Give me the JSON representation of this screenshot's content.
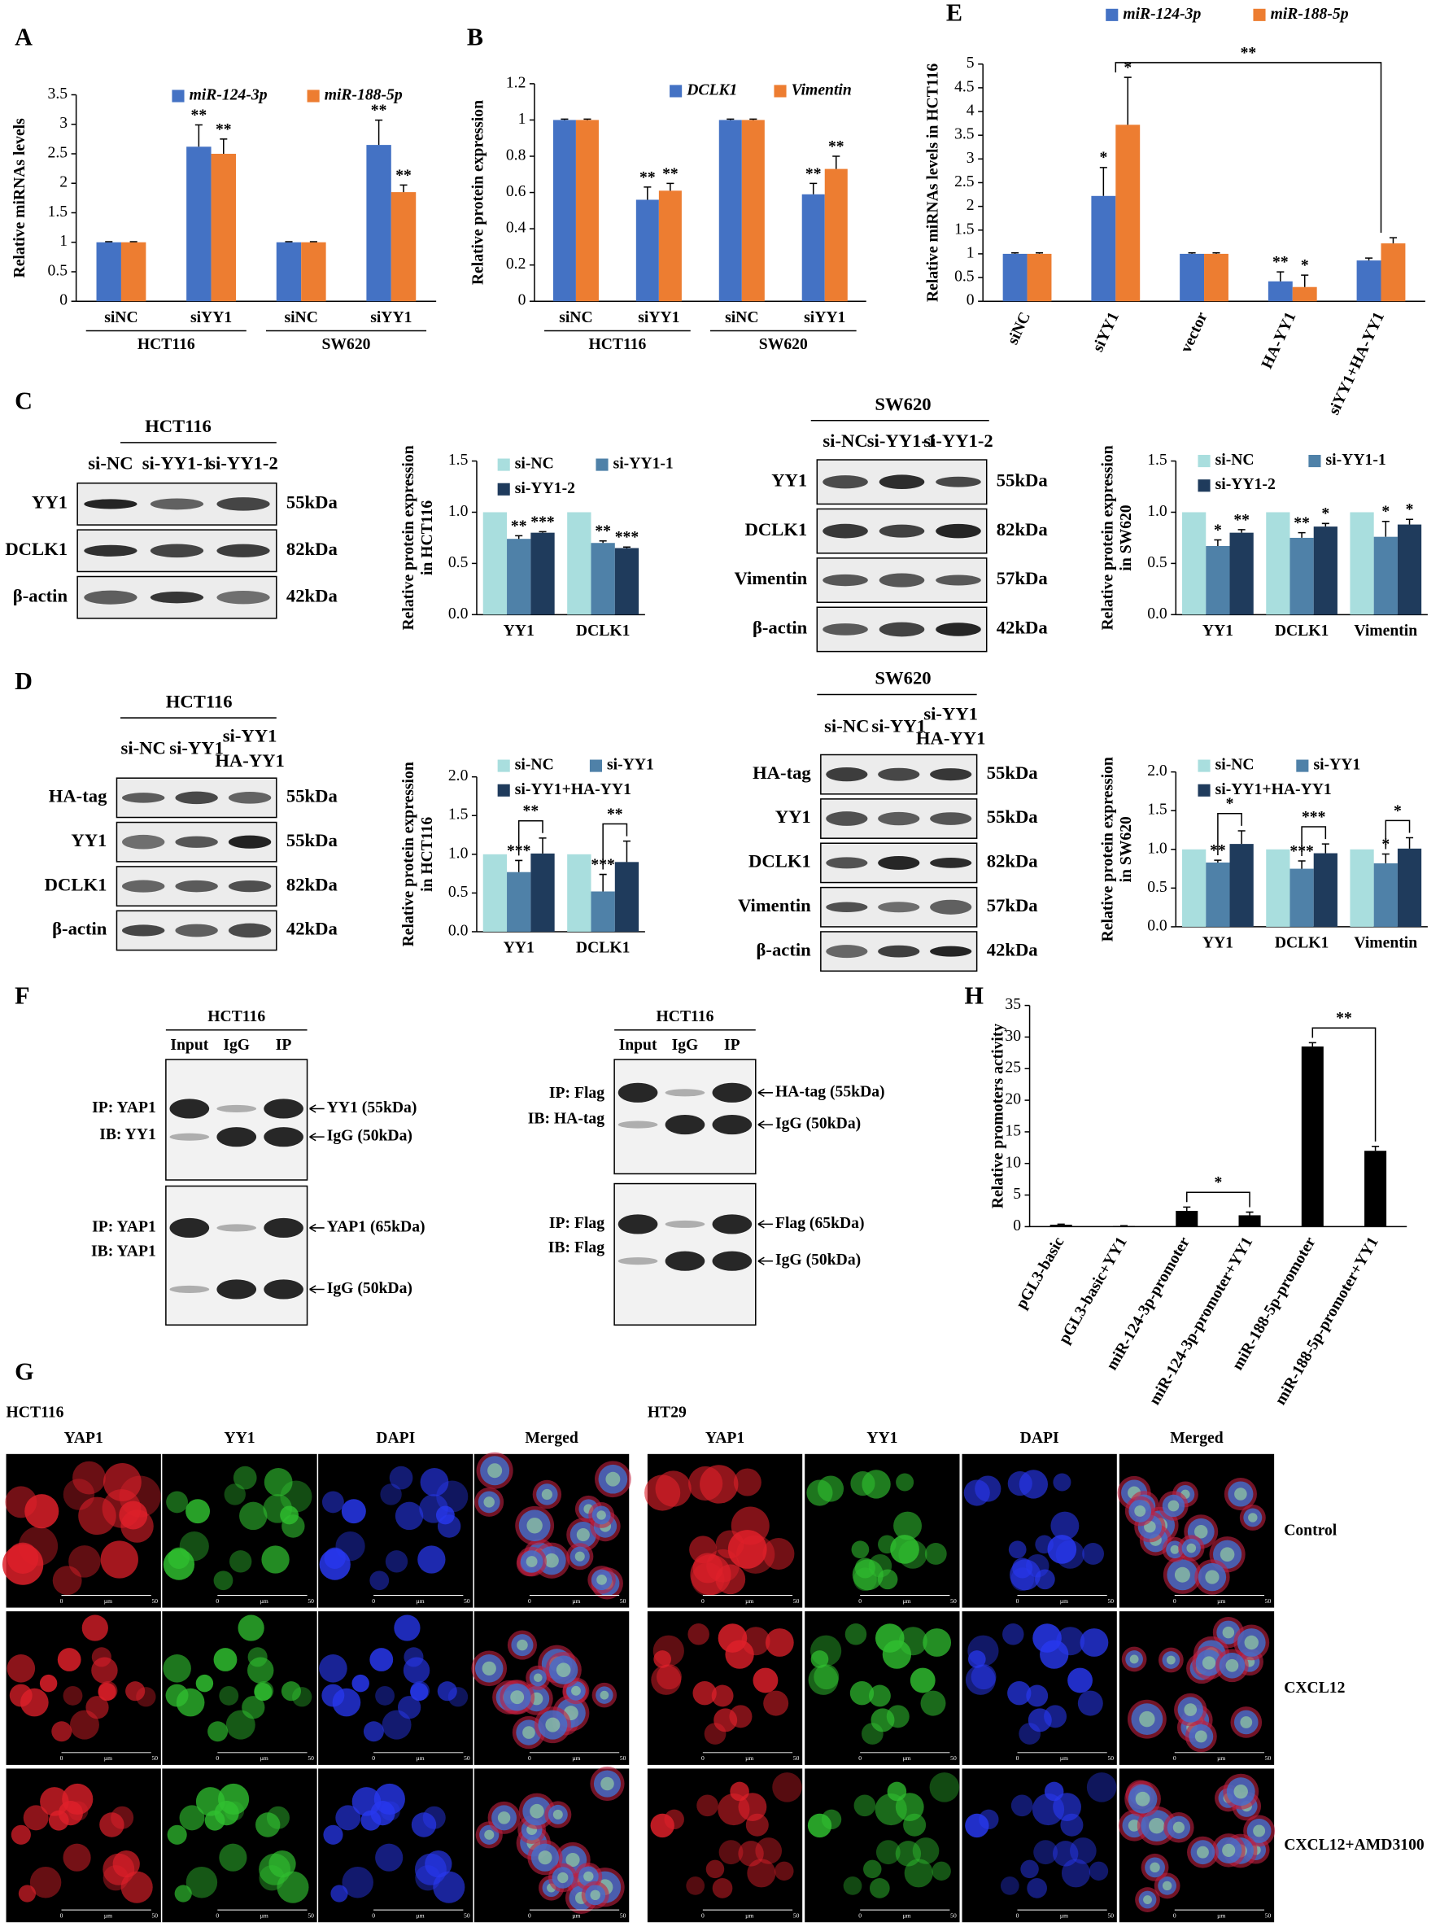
{
  "panel_labels": [
    "A",
    "B",
    "C",
    "D",
    "E",
    "F",
    "G",
    "H"
  ],
  "chart_data": [
    {
      "type": "bar",
      "ylabel": "Relative miRNAs levels",
      "categories": [
        "siNC",
        "siYY1",
        "siNC",
        "siYY1"
      ],
      "groups": [
        "HCT116",
        "SW620"
      ],
      "ylim": [
        0,
        3.5
      ],
      "yticks": [
        0,
        0.5,
        1,
        1.5,
        2,
        2.5,
        3,
        3.5
      ],
      "legend": "top",
      "legend_italic": true,
      "series": [
        {
          "name": "miR-124-3p",
          "color": "#4472c4",
          "values": [
            1,
            2.62,
            1,
            2.65
          ],
          "errors": [
            0.01,
            0.37,
            0.01,
            0.42
          ],
          "significance": [
            null,
            "**",
            null,
            "**"
          ]
        },
        {
          "name": "miR-188-5p",
          "color": "#ed7d31",
          "values": [
            1,
            2.5,
            1,
            1.85
          ],
          "errors": [
            0.01,
            0.25,
            0.01,
            0.12
          ],
          "significance": [
            null,
            "**",
            null,
            "**"
          ]
        }
      ]
    },
    {
      "type": "bar",
      "ylabel": "Relative protein expression",
      "categories": [
        "siNC",
        "siYY1",
        "siNC",
        "siYY1"
      ],
      "groups": [
        "HCT116",
        "SW620"
      ],
      "ylim": [
        0,
        1.2
      ],
      "yticks": [
        0,
        0.2,
        0.4,
        0.6,
        0.8,
        1,
        1.2
      ],
      "legend": "top",
      "legend_italic": true,
      "series": [
        {
          "name": "DCLK1",
          "color": "#4472c4",
          "values": [
            1,
            0.56,
            1,
            0.59
          ],
          "errors": [
            0.005,
            0.07,
            0.005,
            0.06
          ],
          "significance": [
            null,
            "**",
            null,
            "**"
          ]
        },
        {
          "name": "Vimentin",
          "color": "#ed7d31",
          "values": [
            1,
            0.61,
            1,
            0.73
          ],
          "errors": [
            0.005,
            0.04,
            0.005,
            0.07
          ],
          "significance": [
            null,
            "**",
            null,
            "**"
          ]
        }
      ]
    },
    {
      "type": "bar",
      "ylabel": "Relative miRNAs levels in HCT116",
      "categories": [
        "siNC",
        "siYY1",
        "vector",
        "HA-YY1",
        "siYY1+HA-YY1"
      ],
      "ylim": [
        0,
        5
      ],
      "yticks": [
        0,
        0.5,
        1,
        1.5,
        2,
        2.5,
        3,
        3.5,
        4,
        4.5,
        5
      ],
      "legend": "top",
      "legend_italic": true,
      "series": [
        {
          "name": "miR-124-3p",
          "color": "#4472c4",
          "values": [
            1,
            2.22,
            1,
            0.42,
            0.86
          ],
          "errors": [
            0.02,
            0.6,
            0.02,
            0.2,
            0.05
          ],
          "significance": [
            null,
            "*",
            null,
            "**",
            null
          ]
        },
        {
          "name": "miR-188-5p",
          "color": "#ed7d31",
          "values": [
            1,
            3.72,
            1,
            0.3,
            1.22
          ],
          "errors": [
            0.02,
            1.0,
            0.02,
            0.25,
            0.12
          ],
          "significance": [
            null,
            "*",
            null,
            "*",
            null
          ]
        }
      ],
      "comparisons": [
        {
          "label": "**",
          "between": [
            "siYY1",
            "siYY1+HA-YY1"
          ]
        }
      ]
    },
    {
      "type": "bar",
      "ylabel": [
        "Relative protein expression",
        "in HCT116"
      ],
      "categories": [
        "YY1",
        "DCLK1"
      ],
      "ylim": [
        0,
        1.5
      ],
      "yticks": [
        {
          "value": 0,
          "label": "0.0"
        },
        0.5,
        {
          "value": 1,
          "label": "1.0"
        },
        1.5
      ],
      "legend": "top-left",
      "series": [
        {
          "name": "si-NC",
          "color": "#a9dede",
          "values": [
            1,
            1
          ]
        },
        {
          "name": "si-YY1-1",
          "color": "#4f81a8",
          "values": [
            0.74,
            0.7
          ],
          "errors": [
            0.03,
            0.02
          ],
          "significance": [
            "**",
            "**"
          ]
        },
        {
          "name": "si-YY1-2",
          "color": "#1f3b5c",
          "values": [
            0.8,
            0.65
          ],
          "errors": [
            0.01,
            0.01
          ],
          "significance": [
            "***",
            "***"
          ]
        }
      ]
    },
    {
      "type": "bar",
      "ylabel": [
        "Relative protein expression",
        "in SW620"
      ],
      "categories": [
        "YY1",
        "DCLK1",
        "Vimentin"
      ],
      "ylim": [
        0,
        1.5
      ],
      "yticks": [
        {
          "value": 0,
          "label": "0.0"
        },
        0.5,
        {
          "value": 1,
          "label": "1.0"
        },
        1.5
      ],
      "legend": "top-left",
      "series": [
        {
          "name": "si-NC",
          "color": "#a9dede",
          "values": [
            1,
            1,
            1
          ]
        },
        {
          "name": "si-YY1-1",
          "color": "#4f81a8",
          "values": [
            0.67,
            0.75,
            0.76
          ],
          "errors": [
            0.06,
            0.05,
            0.15
          ],
          "significance": [
            "*",
            "**",
            "*"
          ]
        },
        {
          "name": "si-YY1-2",
          "color": "#1f3b5c",
          "values": [
            0.8,
            0.86,
            0.88
          ],
          "errors": [
            0.03,
            0.03,
            0.05
          ],
          "significance": [
            "**",
            "*",
            "*"
          ]
        }
      ]
    },
    {
      "type": "bar",
      "ylabel": [
        "Relative protein expression",
        "in HCT116"
      ],
      "categories": [
        "YY1",
        "DCLK1"
      ],
      "ylim": [
        0,
        2
      ],
      "yticks": [
        {
          "value": 0,
          "label": "0.0"
        },
        0.5,
        {
          "value": 1,
          "label": "1.0"
        },
        1.5,
        {
          "value": 2,
          "label": "2.0"
        }
      ],
      "legend": "top-left",
      "series": [
        {
          "name": "si-NC",
          "color": "#a9dede",
          "values": [
            1,
            1
          ]
        },
        {
          "name": "si-YY1",
          "color": "#4f81a8",
          "values": [
            0.77,
            0.52
          ],
          "errors": [
            0.15,
            0.22
          ],
          "significance": [
            "***",
            "***"
          ]
        },
        {
          "name": "si-YY1+HA-YY1",
          "color": "#1f3b5c",
          "values": [
            1.01,
            0.9
          ],
          "errors": [
            0.2,
            0.27
          ]
        }
      ],
      "comparisons": [
        {
          "label": "**",
          "category": "YY1",
          "between": [
            "si-YY1",
            "si-YY1+HA-YY1"
          ]
        },
        {
          "label": "**",
          "category": "DCLK1",
          "between": [
            "si-YY1",
            "si-YY1+HA-YY1"
          ]
        }
      ]
    },
    {
      "type": "bar",
      "ylabel": [
        "Relative protein expression",
        "in SW620"
      ],
      "categories": [
        "YY1",
        "DCLK1",
        "Vimentin"
      ],
      "ylim": [
        0,
        2
      ],
      "yticks": [
        {
          "value": 0,
          "label": "0.0"
        },
        0.5,
        {
          "value": 1,
          "label": "1.0"
        },
        1.5,
        {
          "value": 2,
          "label": "2.0"
        }
      ],
      "legend": "top-left",
      "series": [
        {
          "name": "si-NC",
          "color": "#a9dede",
          "values": [
            1,
            1,
            1
          ]
        },
        {
          "name": "si-YY1",
          "color": "#4f81a8",
          "values": [
            0.83,
            0.75,
            0.82
          ],
          "errors": [
            0.03,
            0.1,
            0.12
          ],
          "significance": [
            "**",
            "***",
            "*"
          ]
        },
        {
          "name": "si-YY1+HA-YY1",
          "color": "#1f3b5c",
          "values": [
            1.07,
            0.95,
            1.01
          ],
          "errors": [
            0.17,
            0.12,
            0.14
          ]
        }
      ],
      "comparisons": [
        {
          "label": "*",
          "category": "YY1",
          "between": [
            "si-YY1",
            "si-YY1+HA-YY1"
          ]
        },
        {
          "label": "***",
          "category": "DCLK1",
          "between": [
            "si-YY1",
            "si-YY1+HA-YY1"
          ]
        },
        {
          "label": "*",
          "category": "Vimentin",
          "between": [
            "si-YY1",
            "si-YY1+HA-YY1"
          ]
        }
      ]
    },
    {
      "type": "bar",
      "ylabel": "Relative promoters activity",
      "categories": [
        "pGL3-basic",
        "pGL3-basic+YY1",
        "miR-124-3p-promoter",
        "miR-124-3p-promoter+YY1",
        "miR-188-5p-promoter",
        "miR-188-5p-promoter+YY1"
      ],
      "ylim": [
        0,
        35
      ],
      "yticks": [
        0,
        5,
        10,
        15,
        20,
        25,
        30,
        35
      ],
      "color": "#000000",
      "values": [
        0.3,
        0.1,
        2.5,
        1.8,
        28.5,
        12
      ],
      "errors": [
        0.1,
        0.05,
        0.6,
        0.5,
        0.6,
        0.7
      ],
      "comparisons": [
        {
          "label": "*",
          "between": [
            "miR-124-3p-promoter",
            "miR-124-3p-promoter+YY1"
          ]
        },
        {
          "label": "**",
          "between": [
            "miR-188-5p-promoter",
            "miR-188-5p-promoter+YY1"
          ]
        }
      ]
    }
  ],
  "blots": [
    {
      "title": "HCT116",
      "lanes": [
        [
          "si-NC"
        ],
        [
          "si-YY1-1"
        ],
        [
          "si-YY1-2"
        ]
      ],
      "rows": [
        {
          "name": "YY1",
          "size": "55kDa"
        },
        {
          "name": "DCLK1",
          "size": "82kDa"
        },
        {
          "name": "β-actin",
          "size": "42kDa"
        }
      ]
    },
    {
      "title": "SW620",
      "lanes": [
        [
          "si-NC"
        ],
        [
          "si-YY1-1"
        ],
        [
          "si-YY1-2"
        ]
      ],
      "rows": [
        {
          "name": "YY1",
          "size": "55kDa"
        },
        {
          "name": "DCLK1",
          "size": "82kDa"
        },
        {
          "name": "Vimentin",
          "size": "57kDa"
        },
        {
          "name": "β-actin",
          "size": "42kDa"
        }
      ]
    },
    {
      "title": "HCT116",
      "lanes": [
        [
          "si-NC"
        ],
        [
          "si-YY1"
        ],
        [
          "si-YY1",
          "HA-YY1"
        ]
      ],
      "rows": [
        {
          "name": "HA-tag",
          "size": "55kDa"
        },
        {
          "name": "YY1",
          "size": "55kDa"
        },
        {
          "name": "DCLK1",
          "size": "82kDa"
        },
        {
          "name": "β-actin",
          "size": "42kDa"
        }
      ]
    },
    {
      "title": "SW620",
      "lanes": [
        [
          "si-NC"
        ],
        [
          "si-YY1"
        ],
        [
          "si-YY1",
          "HA-YY1"
        ]
      ],
      "rows": [
        {
          "name": "HA-tag",
          "size": "55kDa"
        },
        {
          "name": "YY1",
          "size": "55kDa"
        },
        {
          "name": "DCLK1",
          "size": "82kDa"
        },
        {
          "name": "Vimentin",
          "size": "57kDa"
        },
        {
          "name": "β-actin",
          "size": "42kDa"
        }
      ]
    }
  ],
  "coip": [
    {
      "title": "HCT116",
      "lanes": [
        "Input",
        "IgG",
        "IP"
      ],
      "blocks": [
        {
          "labels": [
            "IP: YAP1",
            "IB: YY1"
          ],
          "bands": [
            "YY1 (55kDa)",
            "IgG (50kDa)"
          ]
        },
        {
          "labels": [
            "IP: YAP1",
            "IB: YAP1"
          ],
          "bands": [
            "YAP1 (65kDa)",
            "IgG (50kDa)"
          ]
        }
      ]
    },
    {
      "title": "HCT116",
      "lanes": [
        "Input",
        "IgG",
        "IP"
      ],
      "blocks": [
        {
          "labels": [
            "IP: Flag",
            "IB: HA-tag"
          ],
          "bands": [
            "HA-tag (55kDa)",
            "IgG (50kDa)"
          ]
        },
        {
          "labels": [
            "IP: Flag",
            "IB: Flag"
          ],
          "bands": [
            "Flag (65kDa)",
            "IgG (50kDa)"
          ]
        }
      ]
    }
  ],
  "if_panel": {
    "cell_lines": [
      "HCT116",
      "HT29"
    ],
    "channels": [
      "YAP1",
      "YY1",
      "DAPI",
      "Merged"
    ],
    "conditions": [
      "Control",
      "CXCL12",
      "CXCL12+AMD3100"
    ],
    "scale_bar": [
      "0",
      "µm",
      "50"
    ]
  }
}
